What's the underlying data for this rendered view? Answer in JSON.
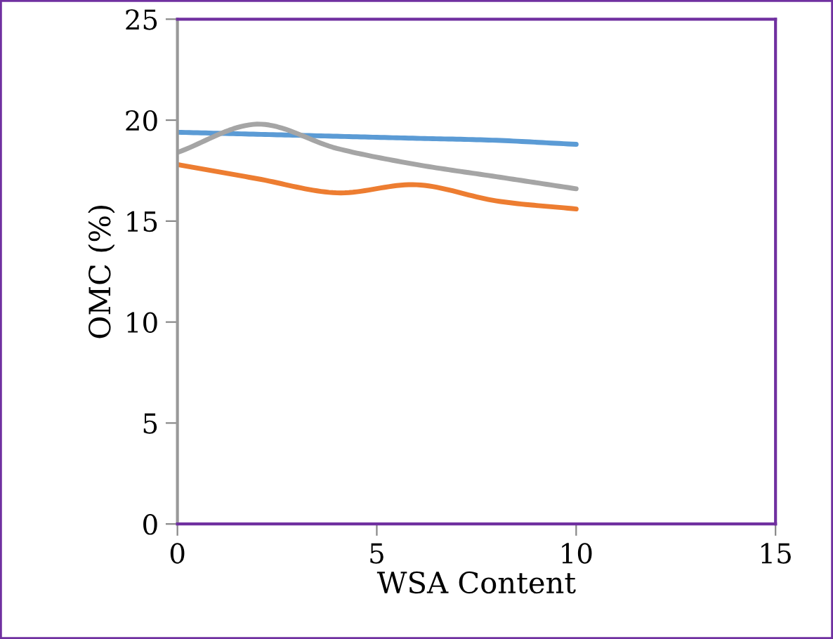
{
  "chart_data": {
    "type": "line",
    "xlabel": "WSA Content",
    "ylabel": "OMC (%)",
    "x": [
      0,
      2,
      4,
      6,
      8,
      10
    ],
    "series": [
      {
        "color": "#5b9bd5",
        "values": [
          19.4,
          19.3,
          19.2,
          19.1,
          19.0,
          18.8
        ]
      },
      {
        "color": "#ed7d31",
        "values": [
          17.8,
          17.1,
          16.4,
          16.8,
          16.0,
          15.6
        ]
      },
      {
        "color": "#a5a5a5",
        "values": [
          18.4,
          19.8,
          18.6,
          17.8,
          17.2,
          16.6
        ]
      }
    ],
    "xlim": [
      0,
      15
    ],
    "xticks": [
      0,
      5,
      10,
      15
    ],
    "ylim": [
      0,
      25
    ],
    "yticks": [
      0,
      5,
      10,
      15,
      20,
      25
    ],
    "grid": false,
    "legend": false,
    "marker": "none",
    "line_style": "solid"
  }
}
